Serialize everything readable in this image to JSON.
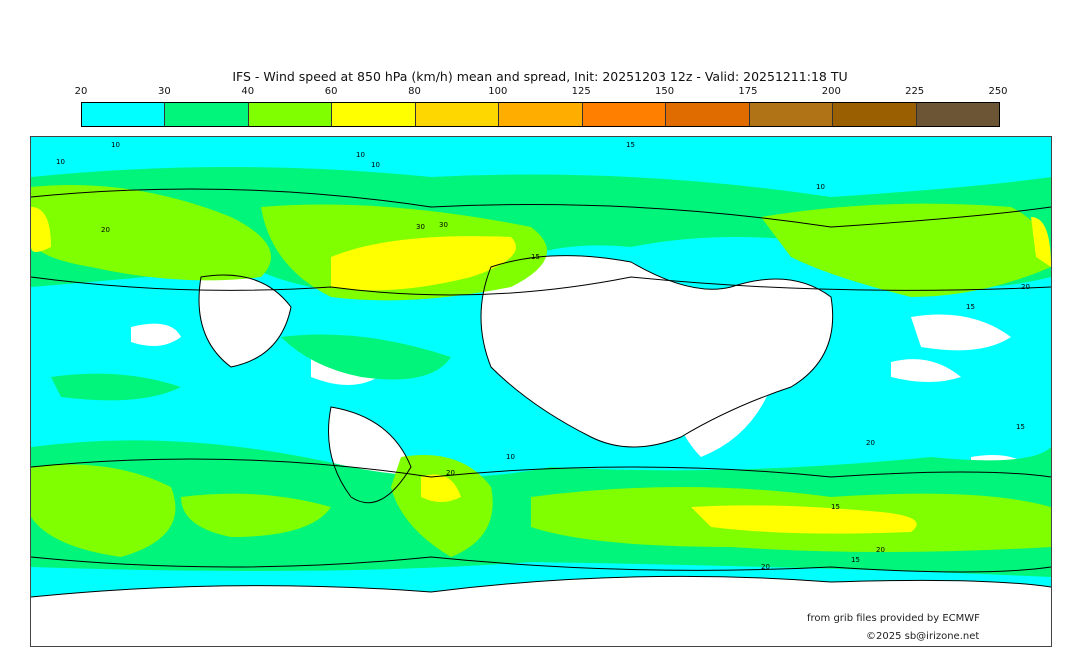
{
  "title": "IFS - Wind speed at 850 hPa (km/h) mean and spread, Init: 20251203 12z - Valid: 20251211:18 TU",
  "colorbar": {
    "ticks": [
      "20",
      "30",
      "40",
      "60",
      "80",
      "100",
      "125",
      "150",
      "175",
      "200",
      "225",
      "250"
    ],
    "colors": [
      "#00ffff",
      "#00f57a",
      "#7fff00",
      "#ffff00",
      "#ffd700",
      "#ffae00",
      "#ff8000",
      "#e06c00",
      "#b07417",
      "#9a5f00",
      "#6b5535"
    ]
  },
  "map": {
    "contour_labels": [
      "10",
      "15",
      "10",
      "10",
      "30",
      "30",
      "20",
      "15",
      "10",
      "10",
      "15",
      "20",
      "20",
      "15",
      "20",
      "10",
      "15",
      "20",
      "20",
      "15"
    ]
  },
  "credits": {
    "source": "from grib files provided by ECMWF",
    "copyright": "©2025 sb@irizone.net"
  }
}
